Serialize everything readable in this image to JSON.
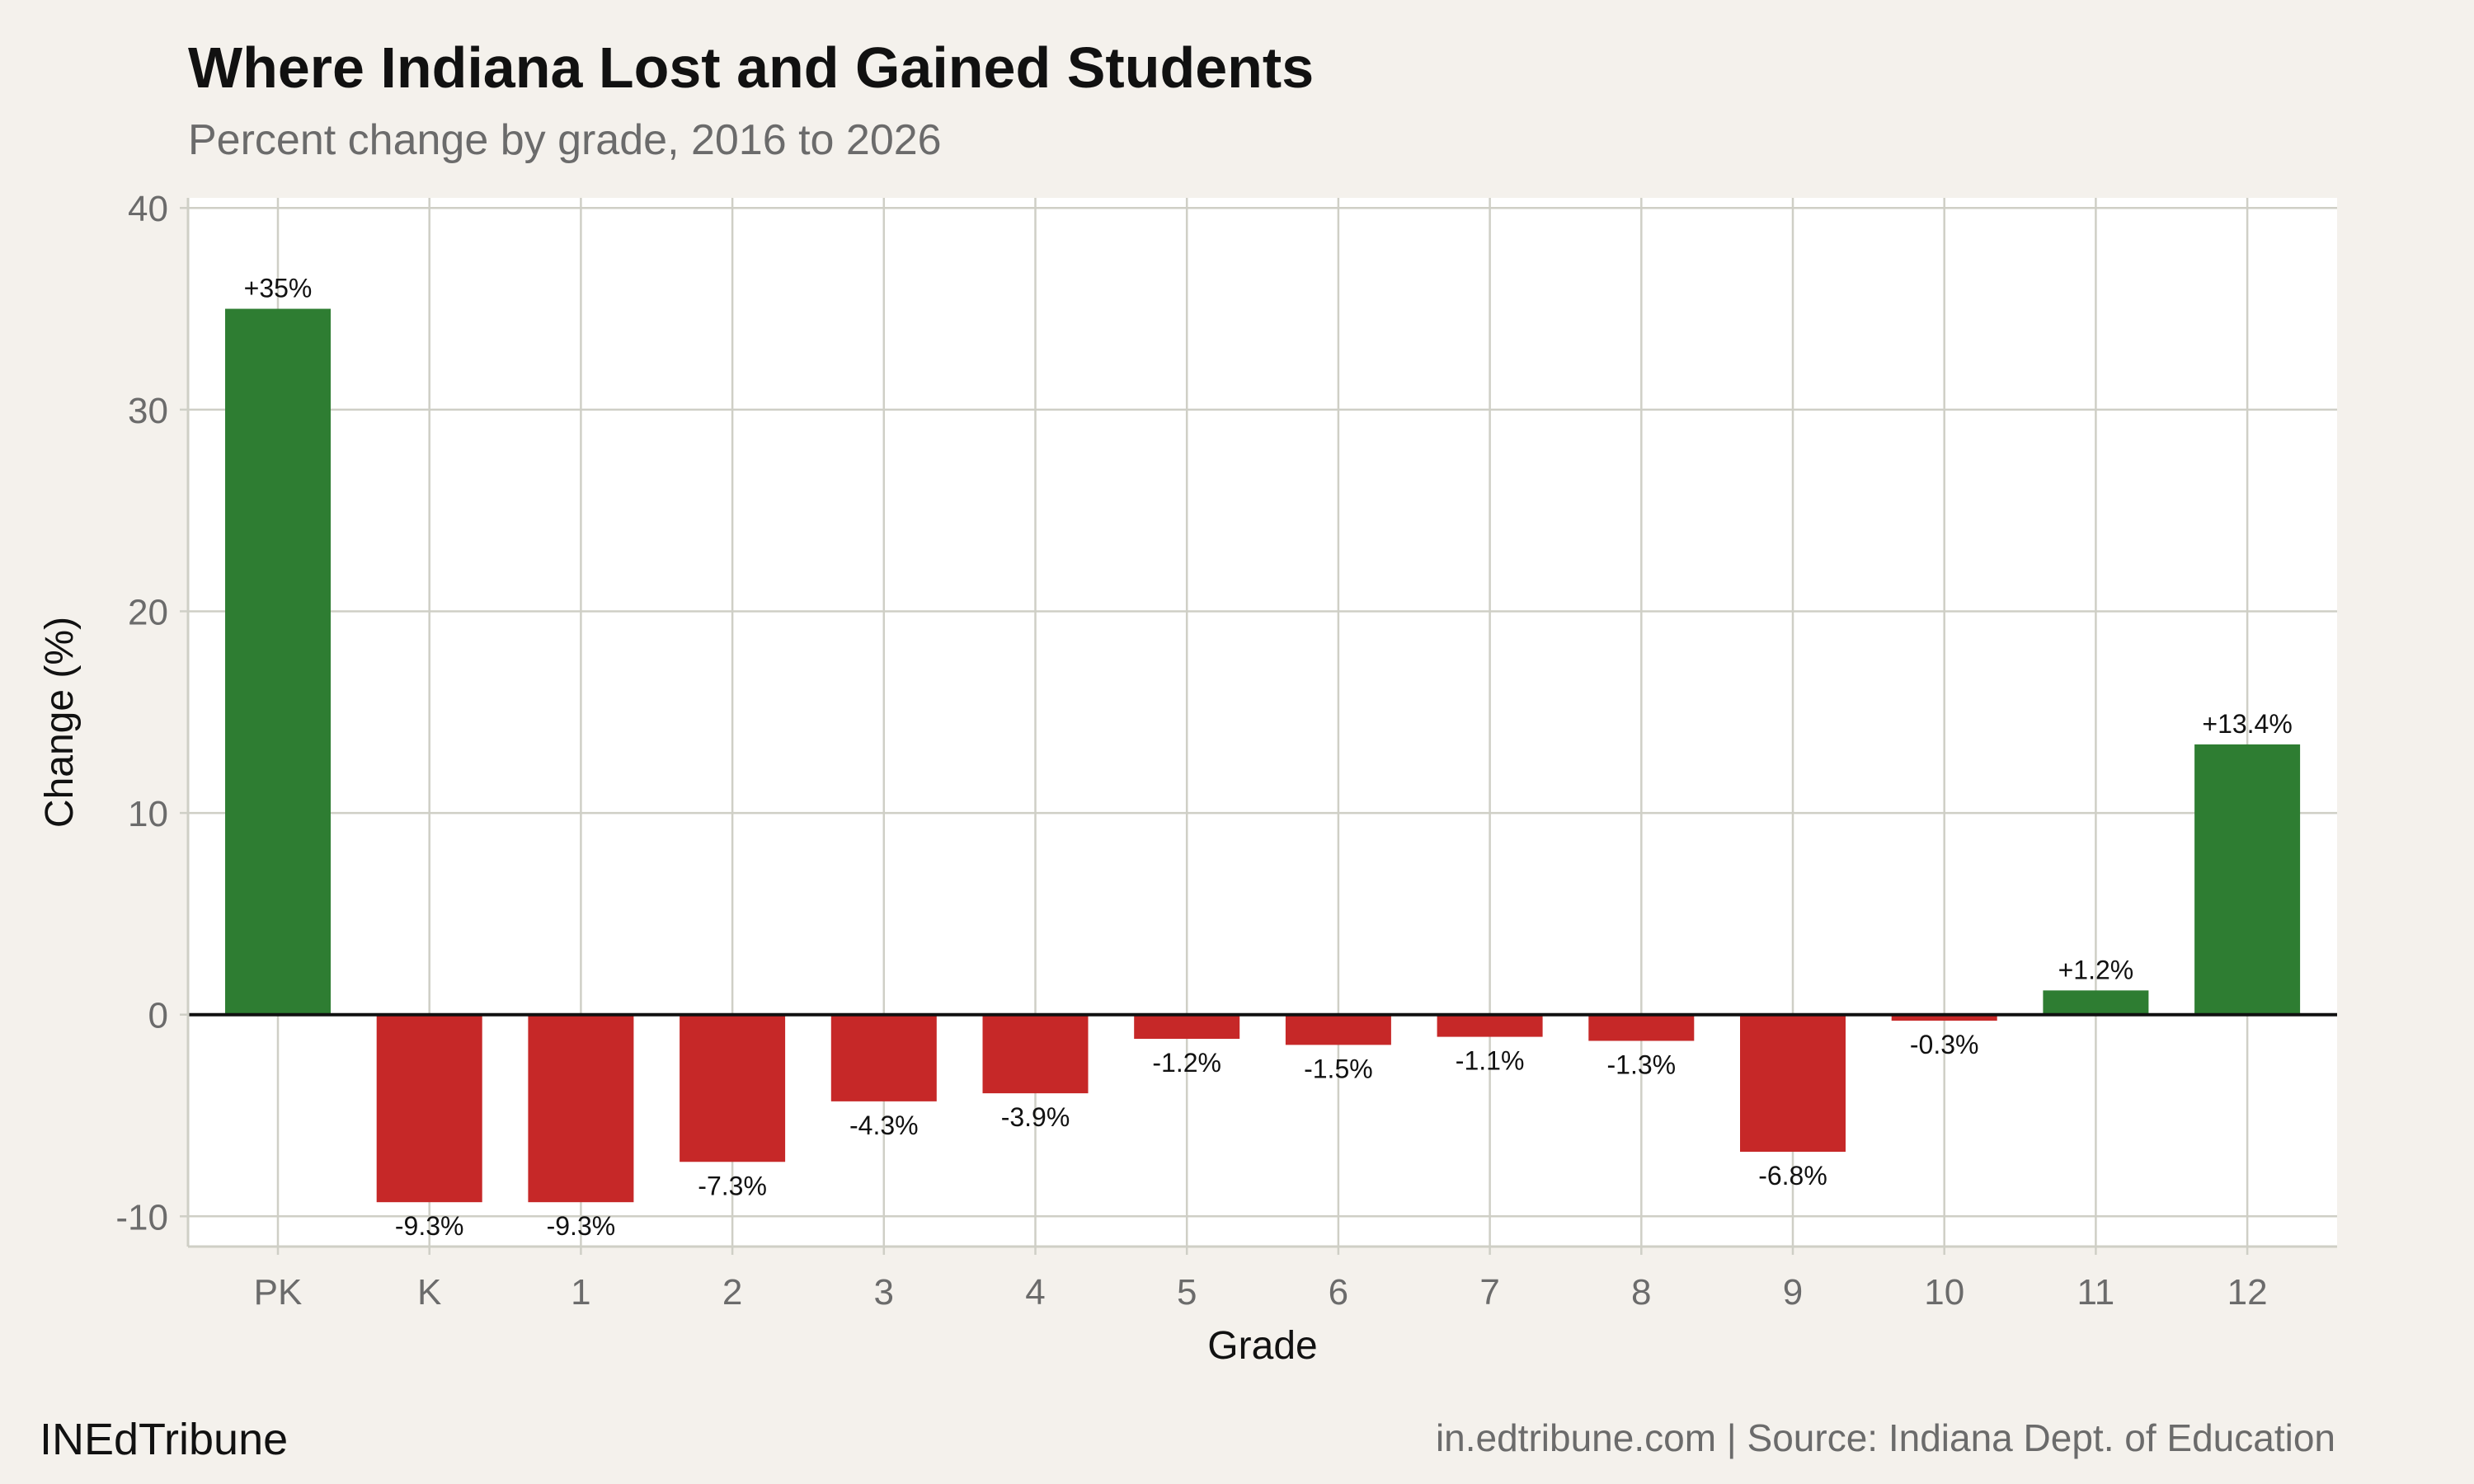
{
  "header": {
    "title": "Where Indiana Lost and Gained Students",
    "subtitle": "Percent change by grade, 2016 to 2026"
  },
  "footer": {
    "brand": "INEdTribune",
    "source": "in.edtribune.com | Source: Indiana Dept. of Education"
  },
  "colors": {
    "background": "#f4f1ec",
    "panel": "#ffffff",
    "gridline": "#cfcfc6",
    "positive": "#2e7d32",
    "negative": "#c62828",
    "zero_line": "#111111"
  },
  "chart_data": {
    "type": "bar",
    "xlabel": "Grade",
    "ylabel": "Change (%)",
    "ylim": [
      -11.5,
      40.5
    ],
    "yticks": [
      -10,
      0,
      10,
      20,
      30,
      40
    ],
    "ytick_labels": [
      "-10",
      "0",
      "10",
      "20",
      "30",
      "40"
    ],
    "grid": true,
    "legend": "none",
    "categories": [
      "PK",
      "K",
      "1",
      "2",
      "3",
      "4",
      "5",
      "6",
      "7",
      "8",
      "9",
      "10",
      "11",
      "12"
    ],
    "values": [
      35,
      -9.3,
      -9.3,
      -7.3,
      -4.3,
      -3.9,
      -1.2,
      -1.5,
      -1.1,
      -1.3,
      -6.8,
      -0.3,
      1.2,
      13.4
    ],
    "data_labels": [
      "+35%",
      "-9.3%",
      "-9.3%",
      "-7.3%",
      "-4.3%",
      "-3.9%",
      "-1.2%",
      "-1.5%",
      "-1.1%",
      "-1.3%",
      "-6.8%",
      "-0.3%",
      "+1.2%",
      "+13.4%"
    ]
  }
}
